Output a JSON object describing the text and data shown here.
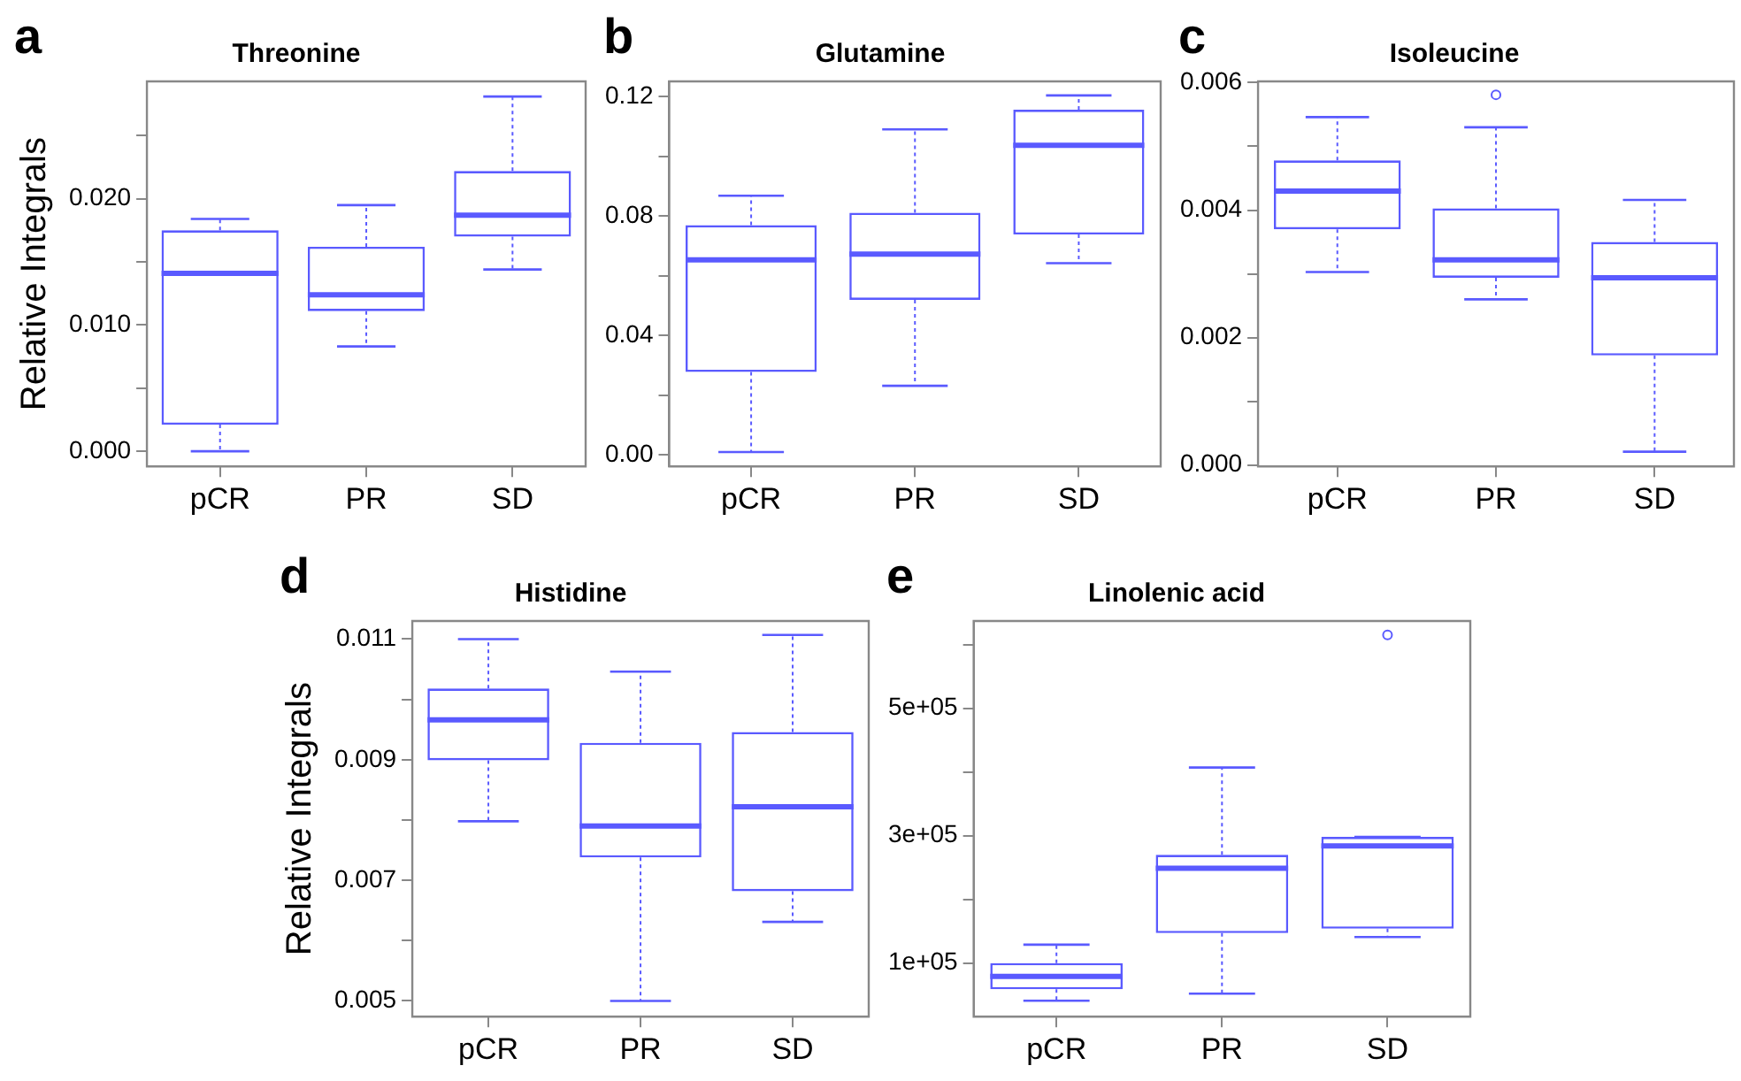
{
  "chart_data": [
    {
      "type": "box",
      "title": "Threonine",
      "ylabel": "Relative Integrals",
      "annotations": [
        "a"
      ],
      "color": "#5a5aff",
      "categories": [
        "pCR",
        "PR",
        "SD"
      ],
      "boxes": [
        {
          "low": 0.0,
          "q1": 0.0021,
          "median": 0.0141,
          "q3": 0.0175,
          "high": 0.0184
        },
        {
          "low": 0.0083,
          "q1": 0.0111,
          "median": 0.0124,
          "q3": 0.0162,
          "high": 0.0195
        },
        {
          "low": 0.0144,
          "q1": 0.017,
          "median": 0.0187,
          "q3": 0.0222,
          "high": 0.0281
        }
      ],
      "ylim": [
        -0.0012,
        0.0293
      ],
      "yticks": [
        {
          "value": 0,
          "label": "0.000"
        },
        {
          "value": 0.005,
          "label": null
        },
        {
          "value": 0.01,
          "label": "0.010"
        },
        {
          "value": 0.015,
          "label": null
        },
        {
          "value": 0.02,
          "label": "0.020"
        },
        {
          "value": 0.025,
          "label": null
        }
      ]
    },
    {
      "type": "box",
      "title": "Glutamine",
      "annotations": [
        "b"
      ],
      "color": "#5a5aff",
      "categories": [
        "pCR",
        "PR",
        "SD"
      ],
      "boxes": [
        {
          "low": 0.0009,
          "q1": 0.0277,
          "median": 0.0653,
          "q3": 0.0769,
          "high": 0.0868
        },
        {
          "low": 0.0231,
          "q1": 0.0519,
          "median": 0.0672,
          "q3": 0.0811,
          "high": 0.109
        },
        {
          "low": 0.0642,
          "q1": 0.0738,
          "median": 0.1037,
          "q3": 0.1156,
          "high": 0.1204
        }
      ],
      "ylim": [
        -0.0039,
        0.1251
      ],
      "yticks": [
        {
          "value": 0,
          "label": "0.00"
        },
        {
          "value": 0.02,
          "label": null
        },
        {
          "value": 0.04,
          "label": "0.04"
        },
        {
          "value": 0.06,
          "label": null
        },
        {
          "value": 0.08,
          "label": "0.08"
        },
        {
          "value": 0.1,
          "label": null
        },
        {
          "value": 0.12,
          "label": "0.12"
        }
      ]
    },
    {
      "type": "box",
      "title": "Isoleucine",
      "annotations": [
        "c"
      ],
      "color": "#5a5aff",
      "categories": [
        "pCR",
        "PR",
        "SD"
      ],
      "boxes": [
        {
          "low": 0.00303,
          "q1": 0.0037,
          "median": 0.0043,
          "q3": 0.00478,
          "high": 0.00546
        },
        {
          "low": 0.0026,
          "q1": 0.00294,
          "median": 0.00322,
          "q3": 0.00403,
          "high": 0.0053,
          "outliers": [
            0.00581
          ]
        },
        {
          "low": 0.00021,
          "q1": 0.00172,
          "median": 0.00294,
          "q3": 0.0035,
          "high": 0.00416
        }
      ],
      "ylim": [
        -2e-05,
        0.00602
      ],
      "yticks": [
        {
          "value": 0,
          "label": "0.000"
        },
        {
          "value": 0.001,
          "label": null
        },
        {
          "value": 0.002,
          "label": "0.002"
        },
        {
          "value": 0.003,
          "label": null
        },
        {
          "value": 0.004,
          "label": "0.004"
        },
        {
          "value": 0.005,
          "label": null
        },
        {
          "value": 0.006,
          "label": "0.006"
        }
      ]
    },
    {
      "type": "box",
      "title": "Histidine",
      "ylabel": "Relative Integrals",
      "annotations": [
        "d"
      ],
      "color": "#5a5aff",
      "categories": [
        "pCR",
        "PR",
        "SD"
      ],
      "boxes": [
        {
          "low": 0.00798,
          "q1": 0.00899,
          "median": 0.00966,
          "q3": 0.01018,
          "high": 0.011
        },
        {
          "low": 0.005,
          "q1": 0.00738,
          "median": 0.0079,
          "q3": 0.00928,
          "high": 0.01046
        },
        {
          "low": 0.00631,
          "q1": 0.00682,
          "median": 0.00822,
          "q3": 0.00946,
          "high": 0.01107
        }
      ],
      "ylim": [
        0.00474,
        0.0113
      ],
      "yticks": [
        {
          "value": 0.005,
          "label": "0.005"
        },
        {
          "value": 0.006,
          "label": null
        },
        {
          "value": 0.007,
          "label": "0.007"
        },
        {
          "value": 0.008,
          "label": null
        },
        {
          "value": 0.009,
          "label": "0.009"
        },
        {
          "value": 0.01,
          "label": null
        },
        {
          "value": 0.011,
          "label": "0.011"
        }
      ]
    },
    {
      "type": "box",
      "title": "Linolenic acid",
      "annotations": [
        "e"
      ],
      "color": "#5a5aff",
      "categories": [
        "pCR",
        "PR",
        "SD"
      ],
      "boxes": [
        {
          "low": 41000,
          "q1": 59000,
          "median": 79000,
          "q3": 100000,
          "high": 129000
        },
        {
          "low": 52000,
          "q1": 147000,
          "median": 249000,
          "q3": 270000,
          "high": 407000
        },
        {
          "low": 141000,
          "q1": 154000,
          "median": 284000,
          "q3": 298000,
          "high": 298000,
          "outliers": [
            615000
          ]
        }
      ],
      "ylim": [
        16000,
        637000
      ],
      "yticks": [
        {
          "value": 100000,
          "label": "1e+05"
        },
        {
          "value": 200000,
          "label": null
        },
        {
          "value": 300000,
          "label": "3e+05"
        },
        {
          "value": 400000,
          "label": null
        },
        {
          "value": 500000,
          "label": "5e+05"
        },
        {
          "value": 600000,
          "label": null
        }
      ]
    }
  ]
}
